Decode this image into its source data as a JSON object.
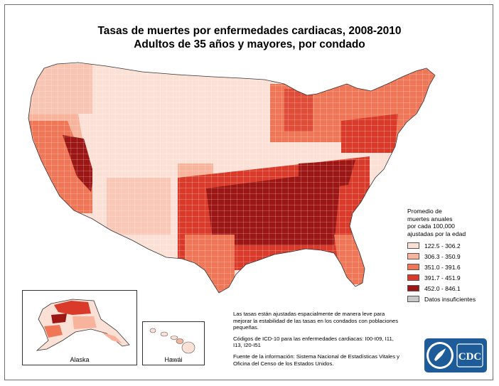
{
  "title": {
    "line1": "Tasas de muertes por enfermedades cardiacas, 2008-2010",
    "line2": "Adultos de 35 años y mayores, por condado"
  },
  "legend": {
    "title_lines": [
      "Promedio de",
      "muertes anuales",
      "por cada 100,000",
      "ajustadas por la edad"
    ],
    "items": [
      {
        "label": "122.5 - 306.2",
        "color": "#fbe0d6"
      },
      {
        "label": "306.3 - 350.9",
        "color": "#f7b39b"
      },
      {
        "label": "351.0 - 391.6",
        "color": "#ef7757"
      },
      {
        "label": "391.7 - 451.9",
        "color": "#d93a2a"
      },
      {
        "label": "452.0 - 846.1",
        "color": "#9b1614"
      },
      {
        "label": "Datos insuficientes",
        "color": "#c8c8c8"
      }
    ]
  },
  "insets": {
    "alaska_label": "Alaska",
    "hawaii_label": "Hawái"
  },
  "notes": {
    "p1": "Las tasas están ajustadas espacialmente de manera leve para mejorar la estabilidad de las tasas en los condados con poblaciones pequeñas.",
    "p2": "Códigos de ICD-10 para las enfermedades cardiacas: I00-I09, I11, I13, I20-I51",
    "p3": "Fuente de la información: Sistema Nacional de Estadísticas Vitales y Oficina del Censo de los Estados Unidos."
  },
  "logos": {
    "cdc_text": "CDC"
  }
}
